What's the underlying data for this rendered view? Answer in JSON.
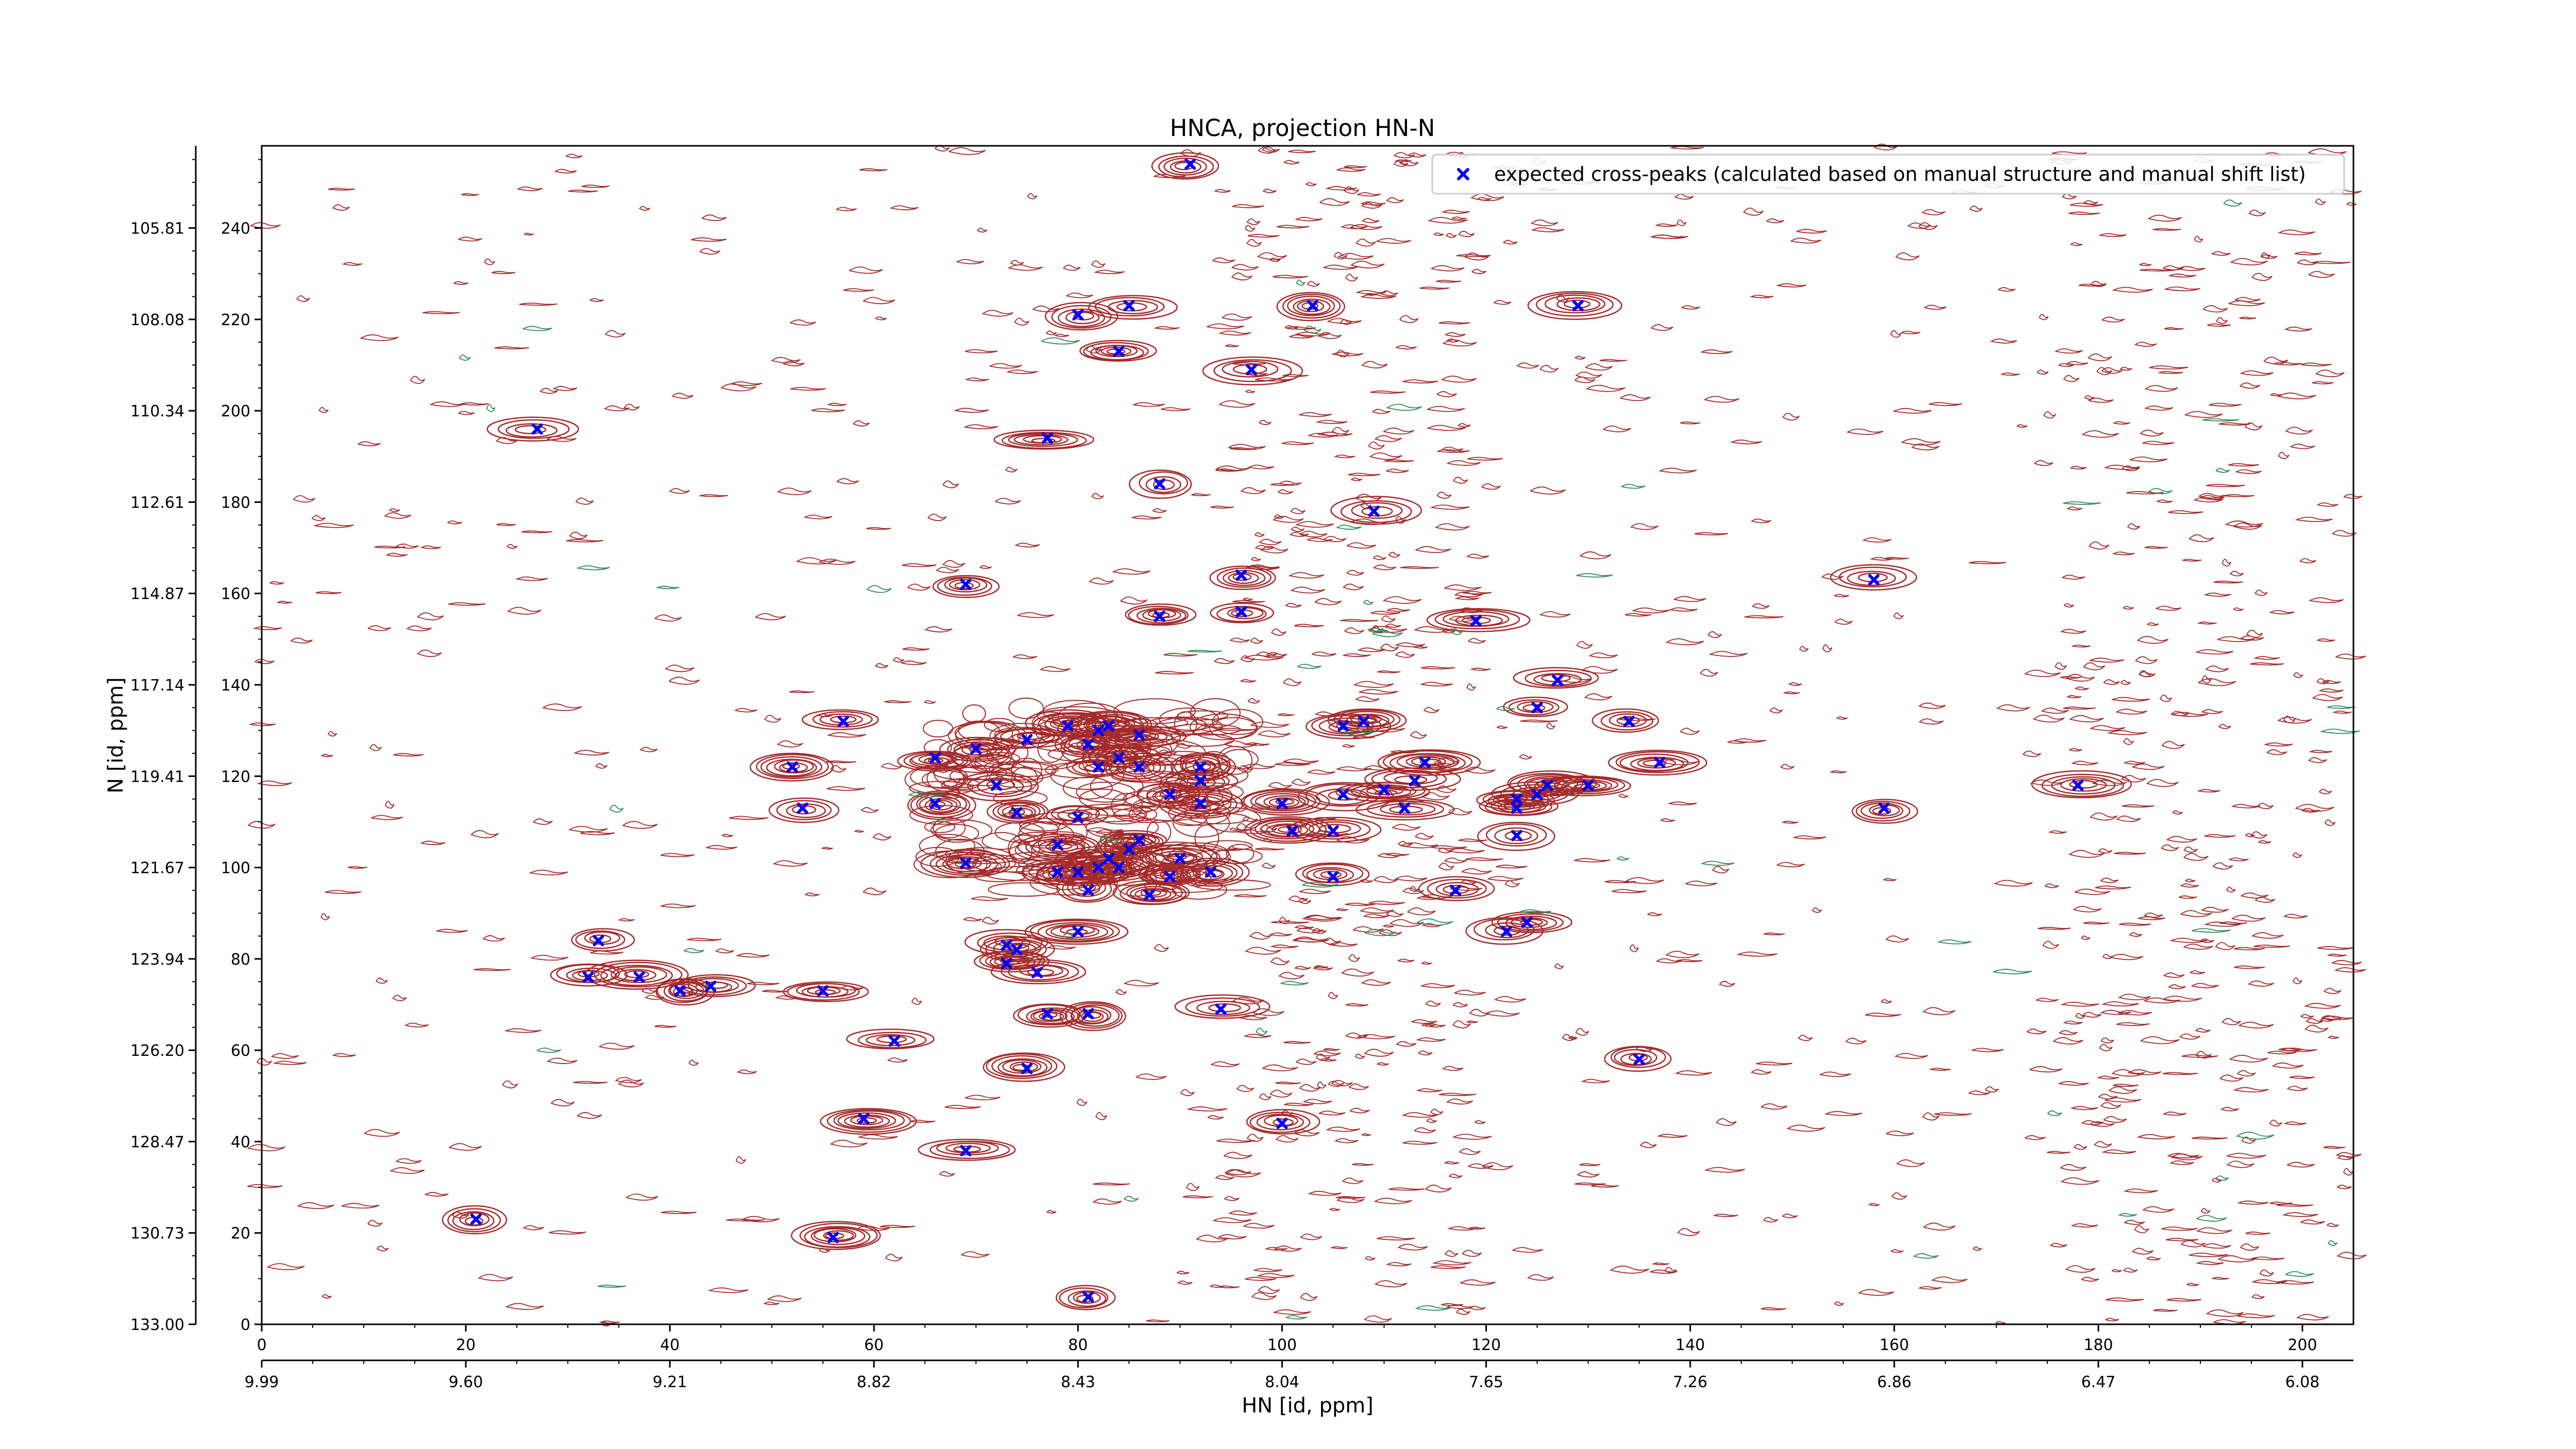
{
  "chart_data": {
    "type": "scatter",
    "title": "HNCA, projection HN-N",
    "xlabel": "HN [id, ppm]",
    "ylabel": "N [id, ppm]",
    "x_index": {
      "range": [
        0,
        205
      ],
      "ticks": [
        0,
        20,
        40,
        60,
        80,
        100,
        120,
        140,
        160,
        180,
        200
      ]
    },
    "x_ppm": {
      "ticks": [
        "9.99",
        "9.60",
        "9.21",
        "8.82",
        "8.43",
        "8.04",
        "7.65",
        "7.26",
        "6.86",
        "6.47",
        "6.08"
      ]
    },
    "y_index": {
      "range": [
        0,
        258
      ],
      "ticks": [
        0,
        20,
        40,
        60,
        80,
        100,
        120,
        140,
        160,
        180,
        200,
        220,
        240
      ]
    },
    "y_ppm": {
      "ticks": [
        "133.00",
        "130.73",
        "128.47",
        "126.20",
        "123.94",
        "121.67",
        "119.41",
        "117.14",
        "114.87",
        "112.61",
        "110.34",
        "108.08",
        "105.81"
      ]
    },
    "grid": false,
    "legend": {
      "position": "top-right",
      "entries": [
        {
          "label": "expected cross-peaks (calculated based on manual structure and manual shift list)",
          "color": "#0000ff",
          "marker": "x"
        }
      ]
    },
    "colors": {
      "contour": "#a52a2a",
      "contour_neg": "#2e8b57",
      "marker": "#0000ff"
    },
    "series": [
      {
        "name": "expected cross-peaks (calculated based on manual structure and manual shift list)",
        "points": [
          [
            91,
            254
          ],
          [
            85,
            223
          ],
          [
            80,
            221
          ],
          [
            84,
            213
          ],
          [
            103,
            223
          ],
          [
            129,
            223
          ],
          [
            97,
            209
          ],
          [
            27,
            196
          ],
          [
            77,
            194
          ],
          [
            88,
            184
          ],
          [
            109,
            178
          ],
          [
            69,
            162
          ],
          [
            96,
            164
          ],
          [
            88,
            155
          ],
          [
            96,
            156
          ],
          [
            119,
            154
          ],
          [
            127,
            141
          ],
          [
            57,
            132
          ],
          [
            70,
            126
          ],
          [
            66,
            124
          ],
          [
            52,
            122
          ],
          [
            75,
            128
          ],
          [
            79,
            131
          ],
          [
            82,
            130
          ],
          [
            83,
            131
          ],
          [
            86,
            129
          ],
          [
            81,
            127
          ],
          [
            82,
            122
          ],
          [
            84,
            124
          ],
          [
            86,
            122
          ],
          [
            92,
            122
          ],
          [
            108,
            132
          ],
          [
            106,
            131
          ],
          [
            125,
            135
          ],
          [
            134,
            132
          ],
          [
            137,
            123
          ],
          [
            126,
            118
          ],
          [
            123,
            115
          ],
          [
            130,
            118
          ],
          [
            114,
            123
          ],
          [
            106,
            116
          ],
          [
            110,
            117
          ],
          [
            112,
            113
          ],
          [
            113,
            119
          ],
          [
            125,
            116
          ],
          [
            123,
            113
          ],
          [
            53,
            113
          ],
          [
            66,
            114
          ],
          [
            72,
            118
          ],
          [
            74,
            112
          ],
          [
            89,
            116
          ],
          [
            92,
            119
          ],
          [
            92,
            114
          ],
          [
            100,
            114
          ],
          [
            101,
            108
          ],
          [
            105,
            108
          ],
          [
            80,
            111
          ],
          [
            78,
            105
          ],
          [
            86,
            106
          ],
          [
            85,
            104
          ],
          [
            83,
            102
          ],
          [
            82,
            100
          ],
          [
            78,
            99
          ],
          [
            80,
            99
          ],
          [
            90,
            102
          ],
          [
            89,
            98
          ],
          [
            93,
            99
          ],
          [
            69,
            101
          ],
          [
            84,
            100
          ],
          [
            81,
            95
          ],
          [
            87,
            94
          ],
          [
            105,
            98
          ],
          [
            117,
            95
          ],
          [
            123,
            107
          ],
          [
            122,
            86
          ],
          [
            124,
            88
          ],
          [
            80,
            86
          ],
          [
            73,
            83
          ],
          [
            74,
            82
          ],
          [
            73,
            79
          ],
          [
            76,
            77
          ],
          [
            33,
            84
          ],
          [
            32,
            76
          ],
          [
            37,
            76
          ],
          [
            41,
            73
          ],
          [
            44,
            74
          ],
          [
            55,
            73
          ],
          [
            77,
            68
          ],
          [
            81,
            68
          ],
          [
            94,
            69
          ],
          [
            62,
            62
          ],
          [
            75,
            56
          ],
          [
            135,
            58
          ],
          [
            59,
            45
          ],
          [
            69,
            38
          ],
          [
            100,
            44
          ],
          [
            21,
            23
          ],
          [
            56,
            19
          ],
          [
            81,
            6
          ],
          [
            158,
            163
          ],
          [
            159,
            113
          ],
          [
            178,
            118
          ]
        ]
      }
    ]
  }
}
